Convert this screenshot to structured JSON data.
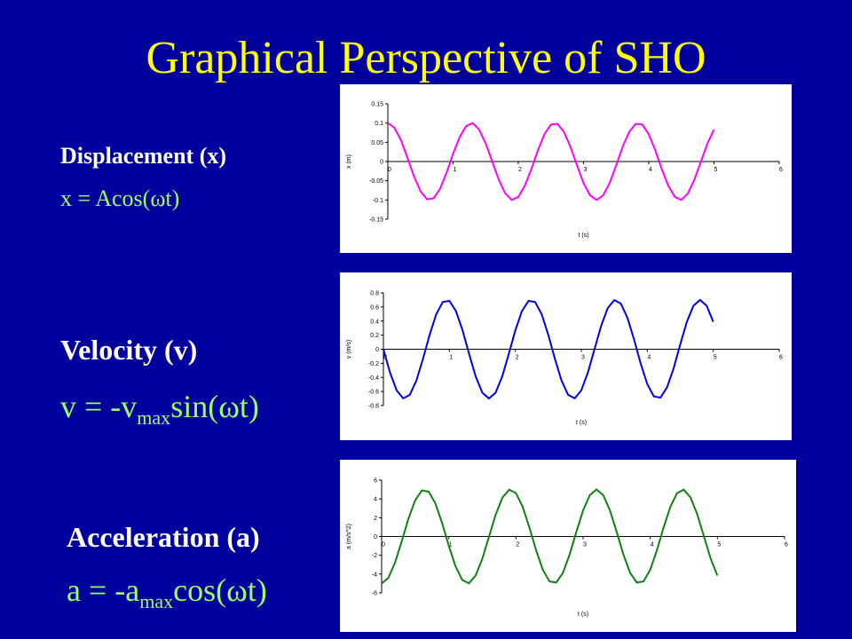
{
  "slide": {
    "title": "Graphical Perspective of SHO",
    "labels": [
      {
        "heading": "Displacement (x)",
        "equation": {
          "before": "x = Acos(ωt)"
        }
      },
      {
        "heading": "Velocity (v)",
        "equation": {
          "before": "v = -v",
          "sub": "max",
          "after": "sin(ωt)"
        }
      },
      {
        "heading": "Acceleration (a)",
        "equation": {
          "before": "a = -a",
          "sub": "max",
          "after": "cos(ωt)"
        }
      }
    ]
  },
  "chart_data": [
    {
      "type": "line",
      "xlabel": "t (s)",
      "ylabel": "x (m)",
      "color": "#ff00ff",
      "xlim": [
        0,
        6
      ],
      "xticks": [
        0,
        1,
        2,
        3,
        4,
        5,
        6
      ],
      "ylim": [
        -0.15,
        0.15
      ],
      "yticks": [
        0.15,
        0.1,
        0.05,
        0,
        -0.05,
        -0.1,
        -0.15
      ],
      "x": [
        0,
        0.1,
        0.2,
        0.3,
        0.4,
        0.5,
        0.6,
        0.7,
        0.8,
        0.9,
        1,
        1.1,
        1.2,
        1.3,
        1.4,
        1.5,
        1.6,
        1.7,
        1.8,
        1.9,
        2,
        2.1,
        2.2,
        2.3,
        2.4,
        2.5,
        2.6,
        2.7,
        2.8,
        2.9,
        3,
        3.1,
        3.2,
        3.3,
        3.4,
        3.5,
        3.6,
        3.7,
        3.8,
        3.9,
        4,
        4.1,
        4.2,
        4.3,
        4.4,
        4.5,
        4.6,
        4.7,
        4.8,
        4.9,
        5
      ],
      "values": [
        0.1,
        0.088,
        0.056,
        0.01,
        -0.038,
        -0.077,
        -0.098,
        -0.096,
        -0.071,
        -0.029,
        0.02,
        0.063,
        0.092,
        0.1,
        0.083,
        0.047,
        0,
        -0.047,
        -0.083,
        -0.1,
        -0.092,
        -0.063,
        -0.02,
        0.029,
        0.071,
        0.096,
        0.098,
        0.077,
        0.038,
        -0.01,
        -0.056,
        -0.088,
        -0.1,
        -0.088,
        -0.056,
        -0.01,
        0.038,
        0.077,
        0.098,
        0.096,
        0.071,
        0.029,
        -0.02,
        -0.063,
        -0.092,
        -0.1,
        -0.083,
        -0.047,
        0,
        0.047,
        0.083
      ]
    },
    {
      "type": "line",
      "xlabel": "t (s)",
      "ylabel": "v (m/s)",
      "color": "#0000e0",
      "xlim": [
        0,
        6
      ],
      "xticks": [
        0,
        1,
        2,
        3,
        4,
        5,
        6
      ],
      "ylim": [
        -0.8,
        0.8
      ],
      "yticks": [
        0.8,
        0.6,
        0.4,
        0.2,
        0,
        -0.2,
        -0.4,
        -0.6,
        -0.8
      ],
      "x": [
        0,
        0.1,
        0.2,
        0.3,
        0.4,
        0.5,
        0.6,
        0.7,
        0.8,
        0.9,
        1,
        1.1,
        1.2,
        1.3,
        1.4,
        1.5,
        1.6,
        1.7,
        1.8,
        1.9,
        2,
        2.1,
        2.2,
        2.3,
        2.4,
        2.5,
        2.6,
        2.7,
        2.8,
        2.9,
        3,
        3.1,
        3.2,
        3.3,
        3.4,
        3.5,
        3.6,
        3.7,
        3.8,
        3.9,
        4,
        4.1,
        4.2,
        4.3,
        4.4,
        4.5,
        4.6,
        4.7,
        4.8,
        4.9,
        5
      ],
      "values": [
        0,
        -0.33,
        -0.582,
        -0.697,
        -0.647,
        -0.444,
        -0.137,
        0.203,
        0.495,
        0.67,
        0.687,
        0.541,
        0.268,
        -0.069,
        -0.389,
        -0.617,
        -0.7,
        -0.617,
        -0.389,
        -0.069,
        0.268,
        0.541,
        0.687,
        0.67,
        0.495,
        0.203,
        -0.137,
        -0.444,
        -0.647,
        -0.697,
        -0.582,
        -0.33,
        0,
        0.33,
        0.582,
        0.697,
        0.647,
        0.444,
        0.137,
        -0.203,
        -0.495,
        -0.67,
        -0.687,
        -0.541,
        -0.268,
        0.069,
        0.389,
        0.617,
        0.7,
        0.617,
        0.389
      ]
    },
    {
      "type": "line",
      "xlabel": "t (s)",
      "ylabel": "a (m/s^2)",
      "color": "#108010",
      "xlim": [
        0,
        6
      ],
      "xticks": [
        0,
        1,
        2,
        3,
        4,
        5,
        6
      ],
      "ylim": [
        -6,
        6
      ],
      "yticks": [
        6,
        4,
        2,
        0,
        -2,
        -4,
        -6
      ],
      "x": [
        0,
        0.1,
        0.2,
        0.3,
        0.4,
        0.5,
        0.6,
        0.7,
        0.8,
        0.9,
        1,
        1.1,
        1.2,
        1.3,
        1.4,
        1.5,
        1.6,
        1.7,
        1.8,
        1.9,
        2,
        2.1,
        2.2,
        2.3,
        2.4,
        2.5,
        2.6,
        2.7,
        2.8,
        2.9,
        3,
        3.1,
        3.2,
        3.3,
        3.4,
        3.5,
        3.6,
        3.7,
        3.8,
        3.9,
        4,
        4.1,
        4.2,
        4.3,
        4.4,
        4.5,
        4.6,
        4.7,
        4.8,
        4.9,
        5
      ],
      "values": [
        -5,
        -4.41,
        -2.78,
        -0.49,
        1.91,
        3.87,
        4.9,
        4.78,
        3.54,
        1.45,
        -0.98,
        -3.17,
        -4.62,
        -4.98,
        -4.16,
        -2.36,
        0,
        2.36,
        4.16,
        4.98,
        4.62,
        3.17,
        0.98,
        -1.45,
        -3.54,
        -4.78,
        -4.9,
        -3.87,
        -1.91,
        0.49,
        2.78,
        4.41,
        5,
        4.41,
        2.78,
        0.49,
        -1.91,
        -3.87,
        -4.9,
        -4.78,
        -3.54,
        -1.45,
        0.98,
        3.17,
        4.62,
        4.98,
        4.16,
        2.36,
        0,
        -2.36,
        -4.16
      ]
    }
  ]
}
